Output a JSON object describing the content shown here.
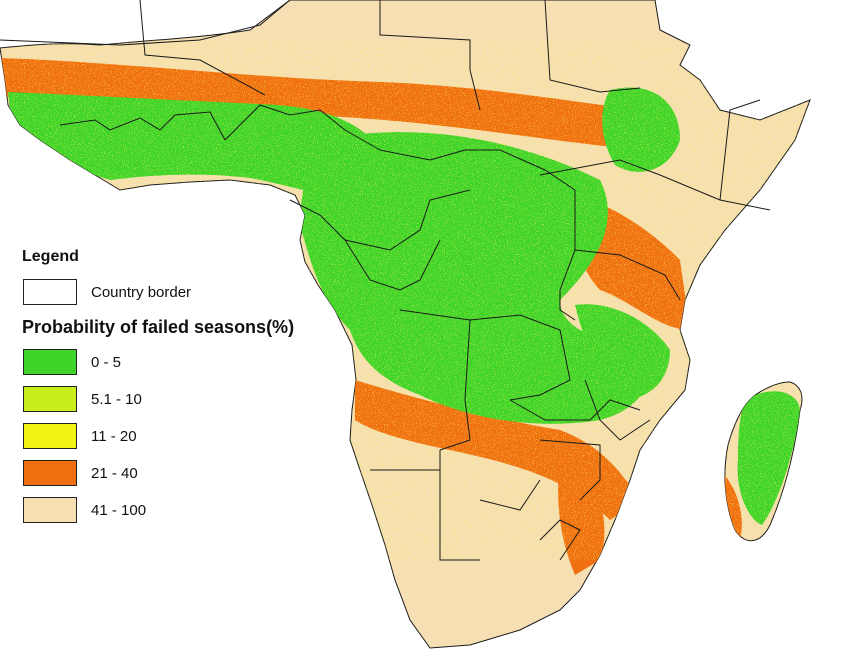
{
  "legend": {
    "title": "Legend",
    "border_item": {
      "label": "Country border",
      "color": "#ffffff"
    },
    "subtitle": "Probability of failed seasons(%)",
    "classes": [
      {
        "label": "0 - 5",
        "color": "#3fd42a"
      },
      {
        "label": "5.1 - 10",
        "color": "#c8ee1c"
      },
      {
        "label": "11 - 20",
        "color": "#f4f414"
      },
      {
        "label": "21 - 40",
        "color": "#f06f10"
      },
      {
        "label": "41 - 100",
        "color": "#f6dfb3"
      }
    ]
  },
  "map": {
    "sea_color": "#ffffff",
    "land_color": "#f6dfb3",
    "border_color": "#1a1a1a",
    "regions": [
      "Africa",
      "Madagascar"
    ]
  }
}
